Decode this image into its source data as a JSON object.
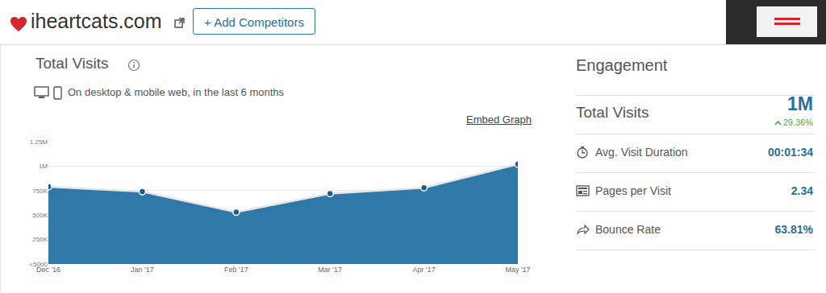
{
  "header": {
    "site": "iheartcats.com",
    "button": "+ Add Competitors"
  },
  "embed_link": "Embed Graph",
  "chart_data": {
    "type": "area",
    "title": "Total Visits",
    "subtitle": "On desktop & mobile web, in the last 6 months",
    "categories": [
      "Dec '16",
      "Jan '17",
      "Feb '17",
      "Mar '17",
      "Apr '17",
      "May '17"
    ],
    "values": [
      790000,
      740000,
      530000,
      720000,
      780000,
      1020000
    ],
    "color": "#1f6fa3",
    "marker": "circle",
    "ylim": [
      0,
      1250000
    ],
    "yticks": [
      {
        "value": 0,
        "label": "<5000"
      },
      {
        "value": 250000,
        "label": "250K"
      },
      {
        "value": 500000,
        "label": "500K"
      },
      {
        "value": 750000,
        "label": "750K"
      },
      {
        "value": 1000000,
        "label": "1M"
      },
      {
        "value": 1250000,
        "label": "1.25M"
      }
    ],
    "grid": true
  },
  "engagement": {
    "title": "Engagement",
    "rows": [
      {
        "label": "Total Visits",
        "value": "1M",
        "change": "29.36%"
      },
      {
        "label": "Avg. Visit Duration",
        "value": "00:01:34"
      },
      {
        "label": "Pages per Visit",
        "value": "2.34"
      },
      {
        "label": "Bounce Rate",
        "value": "63.81%"
      }
    ]
  }
}
